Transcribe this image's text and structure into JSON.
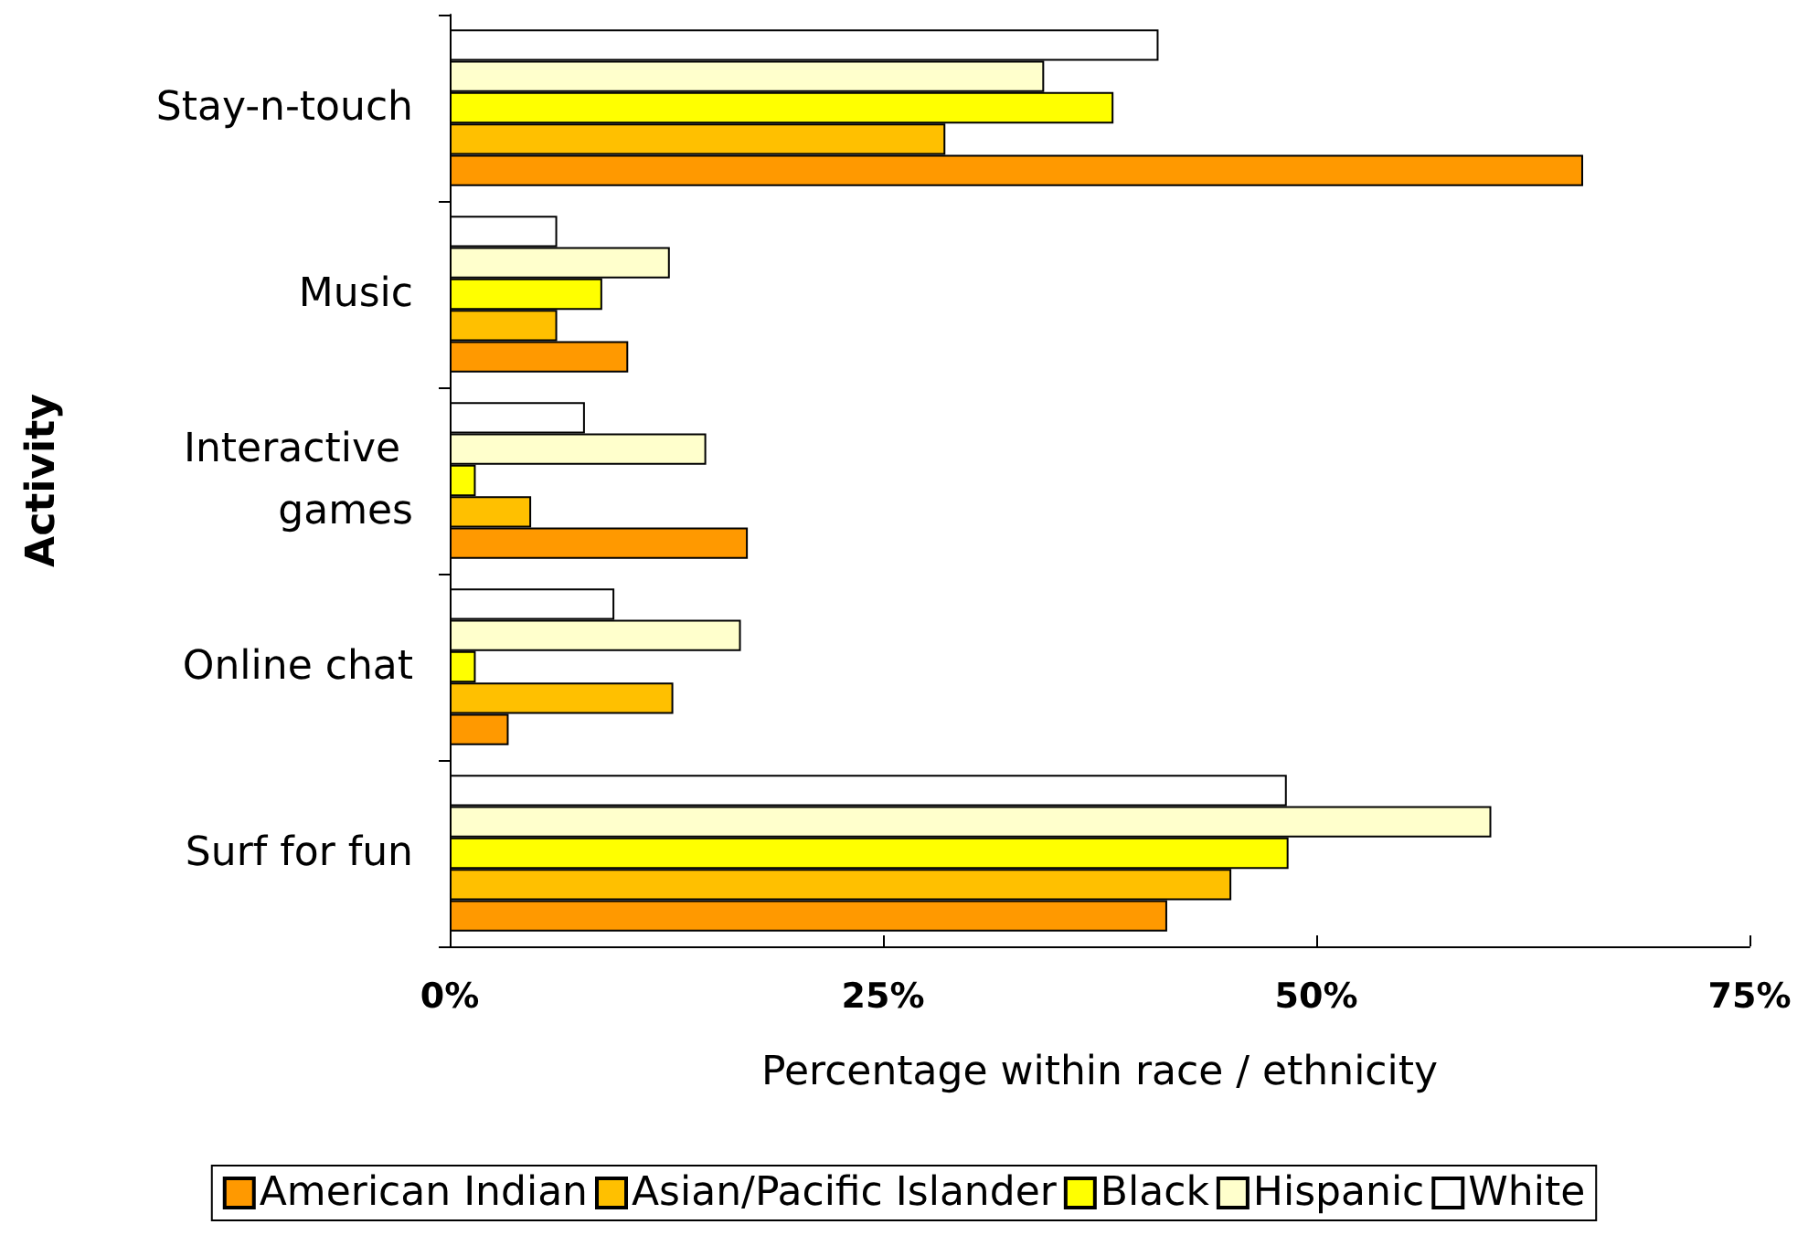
{
  "chart_data": {
    "type": "bar",
    "orientation": "horizontal",
    "xlabel": "Percentage within race / ethnicity",
    "ylabel": "Activity",
    "categories": [
      "Stay-n-touch",
      "Music",
      "Interactive games",
      "Online chat",
      "Surf for fun"
    ],
    "series": [
      {
        "name": "American Indian",
        "color": "#ff9900",
        "values": [
          65.4,
          10.3,
          17.2,
          3.4,
          41.4
        ]
      },
      {
        "name": "Asian/Pacific Islander",
        "color": "#ffc000",
        "values": [
          28.6,
          6.2,
          4.7,
          12.9,
          45.1
        ]
      },
      {
        "name": "Black",
        "color": "#ffff00",
        "values": [
          38.3,
          8.8,
          1.5,
          1.5,
          48.4
        ]
      },
      {
        "name": "Hispanic",
        "color": "#ffffcc",
        "values": [
          34.3,
          12.7,
          14.8,
          16.8,
          60.1
        ]
      },
      {
        "name": "White",
        "color": "#ffffff",
        "values": [
          40.9,
          6.2,
          7.8,
          9.5,
          48.3
        ]
      }
    ],
    "xlim": [
      0,
      75
    ],
    "xticks": [
      {
        "value": 0,
        "label": "0%"
      },
      {
        "value": 25,
        "label": "25%"
      },
      {
        "value": 50,
        "label": "50%"
      },
      {
        "value": 75,
        "label": "75%"
      }
    ],
    "grid": false,
    "legend": "bottom"
  }
}
